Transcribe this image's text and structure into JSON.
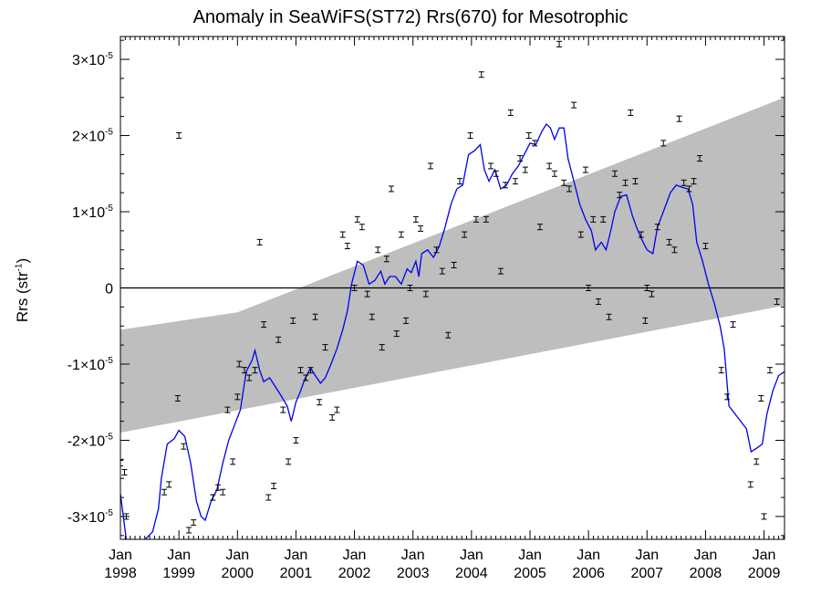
{
  "chart_data": {
    "type": "scatter",
    "title": "Anomaly in SeaWiFS(ST72) Rrs(670) for Mesotrophic",
    "ylabel_text": "Rrs (str",
    "ylabel_sup": "-1",
    "ylabel_close": ")",
    "scale": 1e-05,
    "ylim": [
      -3.3,
      3.3
    ],
    "xlim": [
      1998.0,
      2009.35
    ],
    "grid": false,
    "y_ticks": [
      {
        "v": -3,
        "mant": "-3×10",
        "exp": "-5"
      },
      {
        "v": -2,
        "mant": "-2×10",
        "exp": "-5"
      },
      {
        "v": -1,
        "mant": "-1×10",
        "exp": "-5"
      },
      {
        "v": 0,
        "mant": "0",
        "exp": ""
      },
      {
        "v": 1,
        "mant": "1×10",
        "exp": "-5"
      },
      {
        "v": 2,
        "mant": "2×10",
        "exp": "-5"
      },
      {
        "v": 3,
        "mant": "3×10",
        "exp": "-5"
      }
    ],
    "x_ticks": [
      {
        "v": 1998,
        "month": "Jan",
        "year": "1998"
      },
      {
        "v": 1999,
        "month": "Jan",
        "year": "1999"
      },
      {
        "v": 2000,
        "month": "Jan",
        "year": "2000"
      },
      {
        "v": 2001,
        "month": "Jan",
        "year": "2001"
      },
      {
        "v": 2002,
        "month": "Jan",
        "year": "2002"
      },
      {
        "v": 2003,
        "month": "Jan",
        "year": "2003"
      },
      {
        "v": 2004,
        "month": "Jan",
        "year": "2004"
      },
      {
        "v": 2005,
        "month": "Jan",
        "year": "2005"
      },
      {
        "v": 2006,
        "month": "Jan",
        "year": "2006"
      },
      {
        "v": 2007,
        "month": "Jan",
        "year": "2007"
      },
      {
        "v": 2008,
        "month": "Jan",
        "year": "2008"
      },
      {
        "v": 2009,
        "month": "Jan",
        "year": "2009"
      }
    ],
    "band": {
      "color": "#bebebe",
      "upper": [
        [
          1998.0,
          -0.55
        ],
        [
          2000.0,
          -0.32
        ],
        [
          2009.35,
          2.5
        ]
      ],
      "lower": [
        [
          1998.0,
          -1.9
        ],
        [
          2009.35,
          -0.23
        ]
      ]
    },
    "zero_line": 0,
    "line_series": {
      "color": "#0000ee",
      "points": [
        [
          1998.0,
          -2.7
        ],
        [
          1998.1,
          -3.3
        ],
        [
          1998.3,
          -3.4
        ],
        [
          1998.55,
          -3.2
        ],
        [
          1998.65,
          -2.9
        ],
        [
          1998.7,
          -2.5
        ],
        [
          1998.8,
          -2.05
        ],
        [
          1998.92,
          -1.98
        ],
        [
          1999.0,
          -1.87
        ],
        [
          1999.1,
          -1.95
        ],
        [
          1999.2,
          -2.3
        ],
        [
          1999.3,
          -2.8
        ],
        [
          1999.38,
          -3.0
        ],
        [
          1999.45,
          -3.05
        ],
        [
          1999.55,
          -2.8
        ],
        [
          1999.65,
          -2.65
        ],
        [
          1999.75,
          -2.3
        ],
        [
          1999.85,
          -2.0
        ],
        [
          1999.95,
          -1.8
        ],
        [
          2000.05,
          -1.6
        ],
        [
          2000.15,
          -1.1
        ],
        [
          2000.25,
          -0.95
        ],
        [
          2000.3,
          -0.82
        ],
        [
          2000.38,
          -1.08
        ],
        [
          2000.45,
          -1.23
        ],
        [
          2000.55,
          -1.18
        ],
        [
          2000.65,
          -1.3
        ],
        [
          2000.75,
          -1.42
        ],
        [
          2000.85,
          -1.55
        ],
        [
          2000.92,
          -1.75
        ],
        [
          2001.0,
          -1.5
        ],
        [
          2001.08,
          -1.35
        ],
        [
          2001.15,
          -1.2
        ],
        [
          2001.25,
          -1.05
        ],
        [
          2001.33,
          -1.15
        ],
        [
          2001.42,
          -1.25
        ],
        [
          2001.5,
          -1.18
        ],
        [
          2001.6,
          -1.0
        ],
        [
          2001.7,
          -0.8
        ],
        [
          2001.8,
          -0.55
        ],
        [
          2001.88,
          -0.3
        ],
        [
          2001.95,
          0.05
        ],
        [
          2002.05,
          0.35
        ],
        [
          2002.15,
          0.3
        ],
        [
          2002.25,
          0.05
        ],
        [
          2002.35,
          0.1
        ],
        [
          2002.45,
          0.22
        ],
        [
          2002.52,
          0.05
        ],
        [
          2002.6,
          0.15
        ],
        [
          2002.7,
          0.15
        ],
        [
          2002.8,
          0.05
        ],
        [
          2002.9,
          0.25
        ],
        [
          2002.97,
          0.2
        ],
        [
          2003.05,
          0.35
        ],
        [
          2003.1,
          0.15
        ],
        [
          2003.15,
          0.45
        ],
        [
          2003.25,
          0.5
        ],
        [
          2003.35,
          0.4
        ],
        [
          2003.45,
          0.55
        ],
        [
          2003.55,
          0.8
        ],
        [
          2003.65,
          1.1
        ],
        [
          2003.75,
          1.3
        ],
        [
          2003.85,
          1.35
        ],
        [
          2003.95,
          1.75
        ],
        [
          2004.05,
          1.8
        ],
        [
          2004.15,
          1.88
        ],
        [
          2004.22,
          1.55
        ],
        [
          2004.3,
          1.4
        ],
        [
          2004.4,
          1.55
        ],
        [
          2004.5,
          1.3
        ],
        [
          2004.6,
          1.35
        ],
        [
          2004.7,
          1.5
        ],
        [
          2004.8,
          1.6
        ],
        [
          2004.9,
          1.75
        ],
        [
          2005.0,
          1.9
        ],
        [
          2005.1,
          1.88
        ],
        [
          2005.2,
          2.05
        ],
        [
          2005.28,
          2.15
        ],
        [
          2005.35,
          2.1
        ],
        [
          2005.42,
          1.95
        ],
        [
          2005.5,
          2.1
        ],
        [
          2005.58,
          2.1
        ],
        [
          2005.65,
          1.7
        ],
        [
          2005.75,
          1.4
        ],
        [
          2005.85,
          1.1
        ],
        [
          2005.95,
          0.9
        ],
        [
          2006.05,
          0.75
        ],
        [
          2006.12,
          0.5
        ],
        [
          2006.22,
          0.6
        ],
        [
          2006.3,
          0.5
        ],
        [
          2006.38,
          0.75
        ],
        [
          2006.45,
          1.0
        ],
        [
          2006.55,
          1.2
        ],
        [
          2006.65,
          1.22
        ],
        [
          2006.75,
          0.95
        ],
        [
          2006.82,
          0.8
        ],
        [
          2006.9,
          0.65
        ],
        [
          2007.0,
          0.5
        ],
        [
          2007.1,
          0.45
        ],
        [
          2007.18,
          0.8
        ],
        [
          2007.28,
          1.0
        ],
        [
          2007.4,
          1.25
        ],
        [
          2007.5,
          1.35
        ],
        [
          2007.6,
          1.32
        ],
        [
          2007.7,
          1.3
        ],
        [
          2007.78,
          1.1
        ],
        [
          2007.85,
          0.6
        ],
        [
          2007.95,
          0.35
        ],
        [
          2008.05,
          0.05
        ],
        [
          2008.15,
          -0.2
        ],
        [
          2008.25,
          -0.5
        ],
        [
          2008.32,
          -0.8
        ],
        [
          2008.4,
          -1.55
        ],
        [
          2008.55,
          -1.7
        ],
        [
          2008.7,
          -1.85
        ],
        [
          2008.78,
          -2.15
        ],
        [
          2008.88,
          -2.1
        ],
        [
          2008.97,
          -2.05
        ],
        [
          2009.05,
          -1.65
        ],
        [
          2009.15,
          -1.35
        ],
        [
          2009.25,
          -1.15
        ],
        [
          2009.35,
          -1.1
        ]
      ]
    },
    "points": [
      [
        1998.0,
        -2.3
      ],
      [
        1998.07,
        -2.42
      ],
      [
        1998.1,
        -3.0
      ],
      [
        1998.75,
        -2.68
      ],
      [
        1998.83,
        -2.58
      ],
      [
        1998.98,
        -1.45
      ],
      [
        1999.0,
        2.0
      ],
      [
        1999.08,
        -2.08
      ],
      [
        1999.17,
        -3.18
      ],
      [
        1999.25,
        -3.08
      ],
      [
        1999.58,
        -2.75
      ],
      [
        1999.67,
        -2.62
      ],
      [
        1999.75,
        -2.68
      ],
      [
        1999.83,
        -1.6
      ],
      [
        1999.92,
        -2.28
      ],
      [
        2000.0,
        -1.43
      ],
      [
        2000.03,
        -1.0
      ],
      [
        2000.12,
        -1.08
      ],
      [
        2000.2,
        -1.18
      ],
      [
        2000.3,
        -1.08
      ],
      [
        2000.38,
        0.6
      ],
      [
        2000.45,
        -0.48
      ],
      [
        2000.53,
        -2.75
      ],
      [
        2000.62,
        -2.6
      ],
      [
        2000.7,
        -0.68
      ],
      [
        2000.78,
        -1.6
      ],
      [
        2000.87,
        -2.28
      ],
      [
        2000.95,
        -0.43
      ],
      [
        2001.0,
        -2.0
      ],
      [
        2001.08,
        -1.08
      ],
      [
        2001.17,
        -1.18
      ],
      [
        2001.25,
        -1.08
      ],
      [
        2001.33,
        -0.38
      ],
      [
        2001.4,
        -1.5
      ],
      [
        2001.5,
        -0.78
      ],
      [
        2001.62,
        -1.7
      ],
      [
        2001.7,
        -1.6
      ],
      [
        2001.8,
        0.7
      ],
      [
        2001.88,
        0.55
      ],
      [
        2002.0,
        0.0
      ],
      [
        2002.05,
        0.9
      ],
      [
        2002.13,
        0.8
      ],
      [
        2002.22,
        -0.08
      ],
      [
        2002.3,
        -0.38
      ],
      [
        2002.4,
        0.5
      ],
      [
        2002.47,
        -0.78
      ],
      [
        2002.55,
        0.38
      ],
      [
        2002.63,
        1.3
      ],
      [
        2002.72,
        -0.6
      ],
      [
        2002.8,
        0.7
      ],
      [
        2002.88,
        -0.43
      ],
      [
        2002.95,
        0.0
      ],
      [
        2003.05,
        0.9
      ],
      [
        2003.13,
        0.78
      ],
      [
        2003.22,
        -0.08
      ],
      [
        2003.3,
        1.6
      ],
      [
        2003.4,
        0.5
      ],
      [
        2003.5,
        0.22
      ],
      [
        2003.6,
        -0.62
      ],
      [
        2003.7,
        0.3
      ],
      [
        2003.8,
        1.4
      ],
      [
        2003.88,
        0.7
      ],
      [
        2003.98,
        2.0
      ],
      [
        2004.08,
        0.9
      ],
      [
        2004.17,
        2.8
      ],
      [
        2004.25,
        0.9
      ],
      [
        2004.33,
        1.6
      ],
      [
        2004.42,
        1.5
      ],
      [
        2004.5,
        0.22
      ],
      [
        2004.58,
        1.35
      ],
      [
        2004.67,
        2.3
      ],
      [
        2004.75,
        1.4
      ],
      [
        2004.83,
        1.7
      ],
      [
        2004.92,
        1.55
      ],
      [
        2004.98,
        2.0
      ],
      [
        2005.08,
        1.9
      ],
      [
        2005.17,
        0.8
      ],
      [
        2005.33,
        1.6
      ],
      [
        2005.42,
        1.5
      ],
      [
        2005.5,
        3.2
      ],
      [
        2005.58,
        1.38
      ],
      [
        2005.67,
        1.3
      ],
      [
        2005.75,
        2.4
      ],
      [
        2005.87,
        0.7
      ],
      [
        2005.95,
        1.55
      ],
      [
        2006.0,
        0.0
      ],
      [
        2006.08,
        0.9
      ],
      [
        2006.17,
        -0.18
      ],
      [
        2006.25,
        0.9
      ],
      [
        2006.35,
        -0.38
      ],
      [
        2006.45,
        1.5
      ],
      [
        2006.53,
        1.22
      ],
      [
        2006.63,
        1.38
      ],
      [
        2006.72,
        2.3
      ],
      [
        2006.8,
        1.4
      ],
      [
        2006.9,
        0.7
      ],
      [
        2006.97,
        -0.43
      ],
      [
        2007.0,
        0.0
      ],
      [
        2007.08,
        -0.08
      ],
      [
        2007.18,
        0.8
      ],
      [
        2007.28,
        1.9
      ],
      [
        2007.38,
        0.6
      ],
      [
        2007.47,
        0.5
      ],
      [
        2007.55,
        2.22
      ],
      [
        2007.63,
        1.38
      ],
      [
        2007.72,
        1.3
      ],
      [
        2007.8,
        1.4
      ],
      [
        2007.9,
        1.7
      ],
      [
        2008.0,
        0.55
      ],
      [
        2008.27,
        -1.08
      ],
      [
        2008.37,
        -1.43
      ],
      [
        2008.47,
        -0.48
      ],
      [
        2008.77,
        -2.58
      ],
      [
        2008.87,
        -2.28
      ],
      [
        2008.95,
        -1.45
      ],
      [
        2009.0,
        -3.0
      ],
      [
        2009.1,
        -1.08
      ],
      [
        2009.22,
        -0.18
      ]
    ]
  }
}
